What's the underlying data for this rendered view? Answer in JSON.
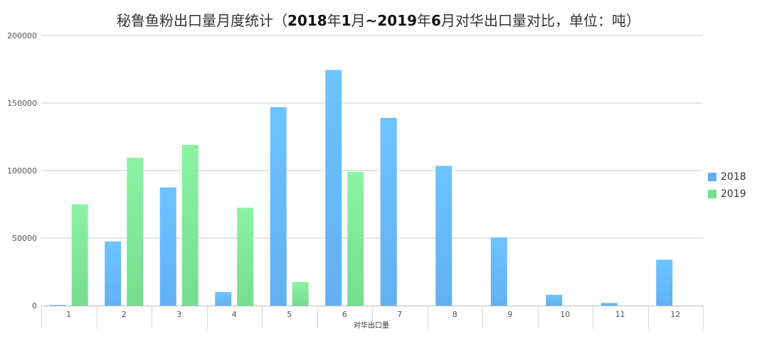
{
  "chart_data": {
    "type": "bar",
    "title_parts": [
      {
        "text": "秘鲁鱼粉出口量月度统计（",
        "bold": false
      },
      {
        "text": "2018",
        "bold": true
      },
      {
        "text": "年",
        "bold": false
      },
      {
        "text": "1",
        "bold": true
      },
      {
        "text": "月",
        "bold": false
      },
      {
        "text": "~2019",
        "bold": true
      },
      {
        "text": "年",
        "bold": false
      },
      {
        "text": "6",
        "bold": true
      },
      {
        "text": "月对华出口量对比，单位：吨）",
        "bold": false
      }
    ],
    "xlabel": "对华出口量",
    "ylabel": "",
    "ylim": [
      0,
      200000
    ],
    "y_ticks": [
      "0",
      "50000",
      "100000",
      "150000",
      "200000"
    ],
    "categories": [
      "1",
      "2",
      "3",
      "4",
      "5",
      "6",
      "7",
      "8",
      "9",
      "10",
      "11",
      "12"
    ],
    "series": [
      {
        "name": "2018",
        "color": "#62b0f0",
        "color_light": "#6cc4ff",
        "values": [
          500,
          47500,
          87500,
          10000,
          147000,
          174500,
          139000,
          103500,
          50500,
          8000,
          2000,
          34000
        ]
      },
      {
        "name": "2019",
        "color": "#76dd8f",
        "color_light": "#8cf3a5",
        "values": [
          75000,
          109500,
          119000,
          72500,
          17500,
          99000,
          null,
          null,
          null,
          null,
          null,
          null
        ]
      }
    ],
    "legend_position": "right",
    "grid": true
  }
}
